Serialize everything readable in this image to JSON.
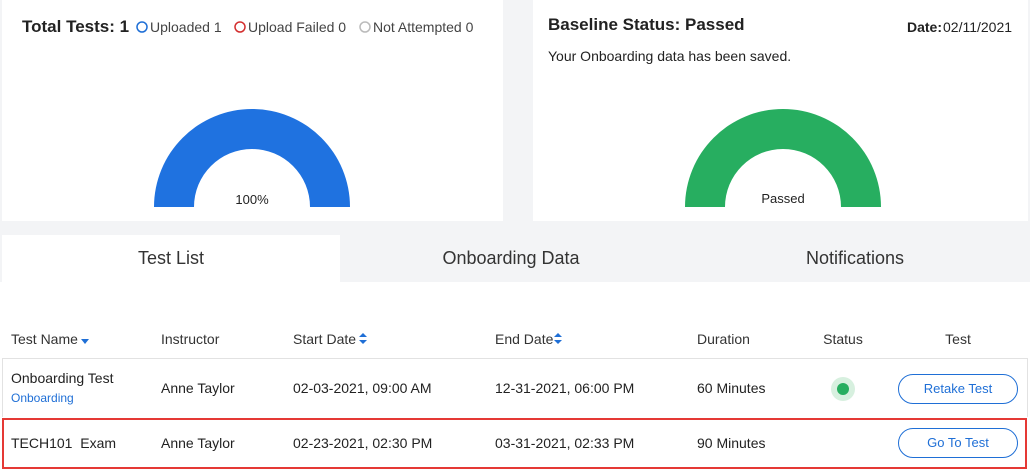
{
  "summary": {
    "title": "Total Tests: 1",
    "legend": [
      "Uploaded 1",
      "Upload Failed 0",
      "Not Attempted 0"
    ],
    "gauge_label": "100%"
  },
  "baseline": {
    "title": "Baseline Status: Passed",
    "date_label": "Date:",
    "date": "02/11/2021",
    "message": "Your Onboarding data has been saved.",
    "gauge_label": "Passed"
  },
  "tabs": [
    "Test List",
    "Onboarding Data",
    "Notifications"
  ],
  "table": {
    "headers": [
      "Test Name",
      "Instructor",
      "Start Date",
      "End Date",
      "Duration",
      "Status",
      "Test"
    ],
    "rows": [
      {
        "name": "Onboarding Test",
        "tag": "Onboarding",
        "instructor": "Anne Taylor",
        "start": "02-03-2021, 09:00 AM",
        "end": "12-31-2021, 06:00 PM",
        "duration": "60 Minutes",
        "action": "Retake Test"
      },
      {
        "name": "TECH101  Exam",
        "instructor": "Anne Taylor",
        "start": "02-23-2021, 02:30 PM",
        "end": "03-31-2021, 02:33 PM",
        "duration": "90 Minutes",
        "action": "Go To Test"
      }
    ]
  }
}
